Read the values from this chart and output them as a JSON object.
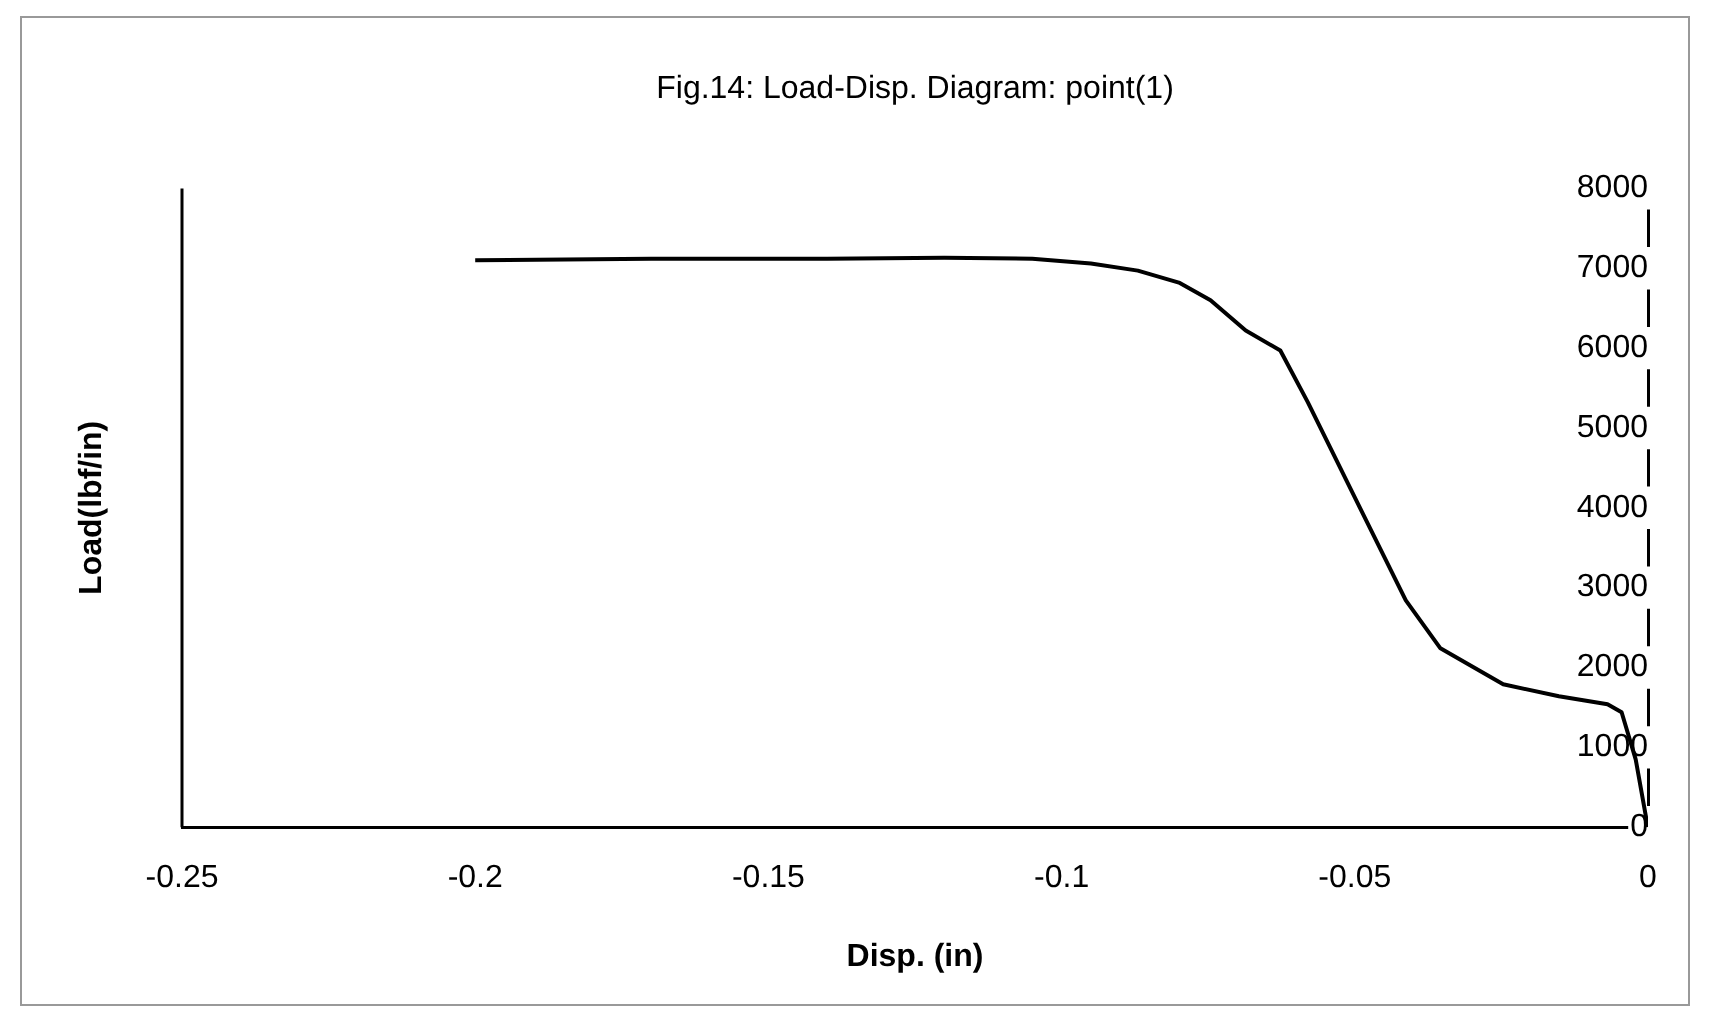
{
  "chart_data": {
    "type": "line",
    "title": "Fig.14: Load-Disp. Diagram: point(1)",
    "xlabel": "Disp. (in)",
    "ylabel": "Load(lbf/in)",
    "xlim": [
      -0.25,
      0
    ],
    "xticks": [
      -0.25,
      -0.2,
      -0.15,
      -0.1,
      -0.05,
      0
    ],
    "ylim": [
      0,
      8000
    ],
    "yticks": [
      0,
      1000,
      2000,
      3000,
      4000,
      5000,
      6000,
      7000,
      8000
    ],
    "grid": false,
    "legend": false,
    "marker": "none",
    "line_style": "solid",
    "series": [
      {
        "color": "#000000",
        "x": [
          -0.2,
          -0.17,
          -0.14,
          -0.12,
          -0.105,
          -0.095,
          -0.087,
          -0.08,
          -0.0746,
          -0.0686,
          -0.0627,
          -0.058,
          -0.05,
          -0.0413,
          -0.0354,
          -0.0247,
          -0.0152,
          -0.0069,
          -0.0045,
          -0.0021,
          -0.0004,
          0
        ],
        "values": [
          7100,
          7120,
          7120,
          7130,
          7120,
          7060,
          6970,
          6820,
          6600,
          6220,
          5970,
          5320,
          4130,
          2840,
          2240,
          1790,
          1640,
          1540,
          1440,
          850,
          150,
          0
        ]
      }
    ]
  }
}
